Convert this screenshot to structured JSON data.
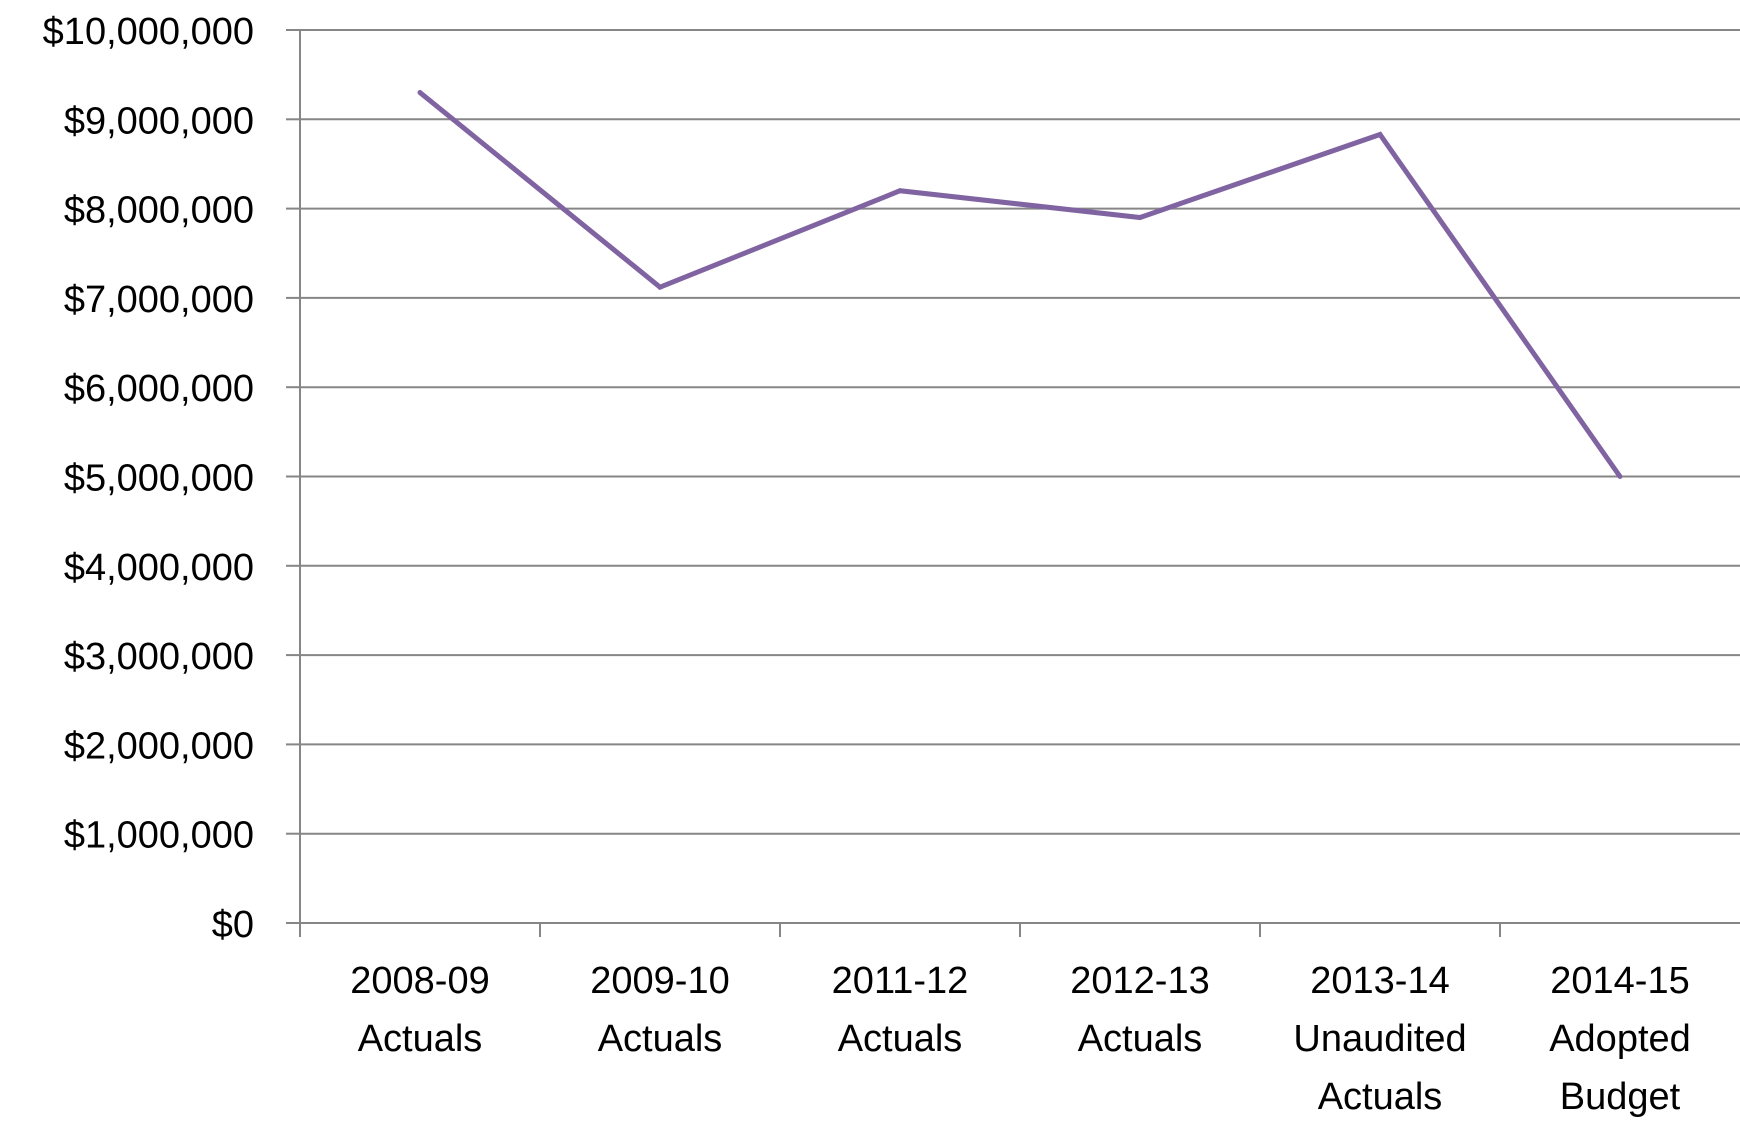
{
  "chart_data": {
    "type": "line",
    "title": "",
    "xlabel": "",
    "ylabel": "",
    "categories": [
      [
        "2008-09",
        "Actuals"
      ],
      [
        "2009-10",
        "Actuals"
      ],
      [
        "2011-12",
        "Actuals"
      ],
      [
        "2012-13",
        "Actuals"
      ],
      [
        "2013-14",
        "Unaudited",
        "Actuals"
      ],
      [
        "2014-15",
        "Adopted",
        "Budget"
      ]
    ],
    "series": [
      {
        "values": [
          9300000,
          7120000,
          8200000,
          7900000,
          8830000,
          5000000
        ],
        "color": "#8064A2"
      }
    ],
    "ylim": [
      0,
      10000000
    ],
    "y_ticks": [
      0,
      1000000,
      2000000,
      3000000,
      4000000,
      5000000,
      6000000,
      7000000,
      8000000,
      9000000,
      10000000
    ],
    "y_tick_labels": [
      "$0",
      "$1,000,000",
      "$2,000,000",
      "$3,000,000",
      "$4,000,000",
      "$5,000,000",
      "$6,000,000",
      "$7,000,000",
      "$8,000,000",
      "$9,000,000",
      "$10,000,000"
    ],
    "grid": true,
    "legend": "none",
    "gridline_color": "#868686",
    "axis_color": "#868686"
  }
}
